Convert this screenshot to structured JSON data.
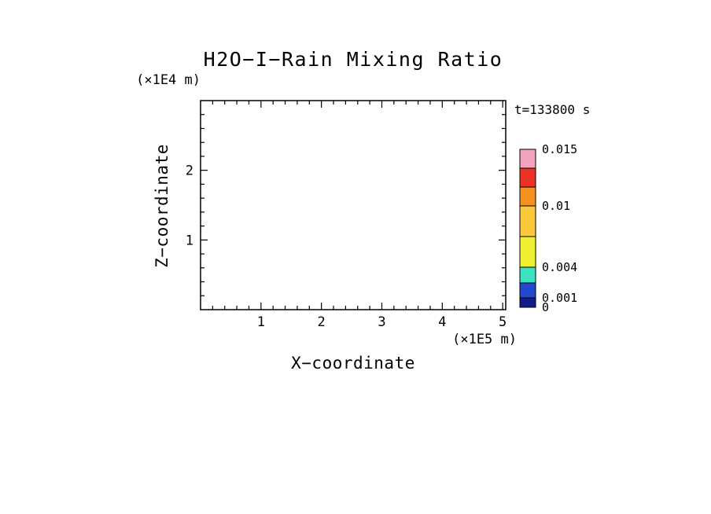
{
  "title": "H2O−I−Rain Mixing Ratio",
  "time_label": "t=133800 s",
  "style": {
    "ink": "#000000",
    "background": "#FFFFFF"
  },
  "axes": {
    "x": {
      "label": "X−coordinate",
      "units": "(×1E5 m)",
      "min": 0,
      "max": 5.05,
      "major_ticks": [
        1,
        2,
        3,
        4,
        5
      ],
      "minor_step": 0.2
    },
    "z": {
      "label": "Z−coordinate",
      "units": "(×1E4 m)",
      "min": 0,
      "max": 3.0,
      "major_ticks": [
        1,
        2
      ],
      "minor_step": 0.2
    }
  },
  "colorbar": {
    "segments": [
      {
        "color": "#F2A3BD",
        "height": 24
      },
      {
        "color": "#EC3226",
        "height": 24
      },
      {
        "color": "#F5921E",
        "height": 24
      },
      {
        "color": "#FBC73B",
        "height": 39
      },
      {
        "color": "#EFF032",
        "height": 39
      },
      {
        "color": "#3BE3BE",
        "height": 20
      },
      {
        "color": "#2447D0",
        "height": 19
      },
      {
        "color": "#131C8C",
        "height": 12
      }
    ],
    "boundary_labels": [
      "0.015",
      "",
      "",
      "0.01",
      "",
      "0.004",
      "",
      "0.001",
      "0"
    ]
  },
  "chart_data": {
    "type": "heatmap",
    "title": "H2O−I−Rain Mixing Ratio",
    "xlabel": "X−coordinate",
    "ylabel": "Z−coordinate",
    "x_units": "(×1E5 m)",
    "y_units": "(×1E4 m)",
    "xlim": [
      0,
      5.05
    ],
    "ylim": [
      0,
      3.0
    ],
    "time_label": "t=133800 s",
    "grid": false,
    "legend_position": "right-colorbar",
    "colorbar_labeled_levels": [
      0,
      0.001,
      0.004,
      0.01,
      0.015
    ],
    "series": [],
    "note": "plot area is blank: no field values above the lowest contour level are drawn at this timestep"
  }
}
